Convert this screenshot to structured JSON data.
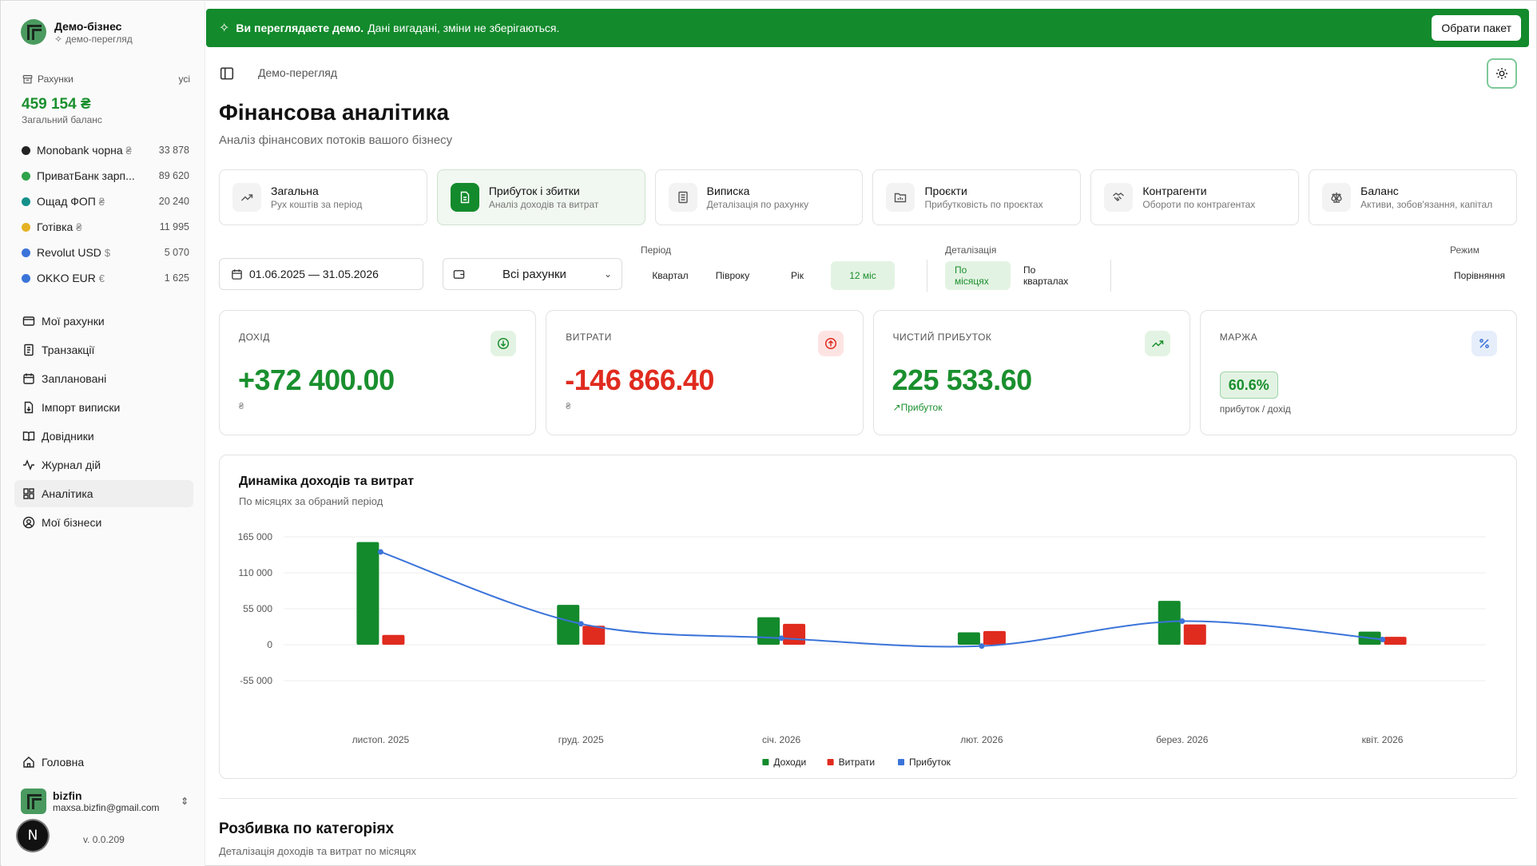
{
  "business": {
    "name": "Демо-бізнес",
    "subtitle": "демо-перегляд"
  },
  "accounts": {
    "header": "Рахунки",
    "all_link": "усі",
    "total": "459 154 ₴",
    "total_label": "Загальний баланс",
    "items": [
      {
        "name": "Monobank чорна",
        "currency": "₴",
        "amount": "33 878",
        "color": "#222222"
      },
      {
        "name": "ПриватБанк зарп...",
        "currency": "",
        "amount": "89 620",
        "color": "#2fa24a"
      },
      {
        "name": "Ощад ФОП",
        "currency": "₴",
        "amount": "20 240",
        "color": "#15918a"
      },
      {
        "name": "Готівка",
        "currency": "₴",
        "amount": "11 995",
        "color": "#e5b224"
      },
      {
        "name": "Revolut USD",
        "currency": "$",
        "amount": "5 070",
        "color": "#3b74d9"
      },
      {
        "name": "OKKO EUR",
        "currency": "€",
        "amount": "1 625",
        "color": "#3b74d9"
      }
    ]
  },
  "nav": [
    {
      "label": "Мої рахунки",
      "icon": "wallet-icon"
    },
    {
      "label": "Транзакції",
      "icon": "receipt-icon"
    },
    {
      "label": "Заплановані",
      "icon": "calendar-icon"
    },
    {
      "label": "Імпорт виписки",
      "icon": "file-import-icon"
    },
    {
      "label": "Довідники",
      "icon": "book-icon"
    },
    {
      "label": "Журнал дій",
      "icon": "activity-icon"
    },
    {
      "label": "Аналітика",
      "icon": "dashboard-icon",
      "active": true
    },
    {
      "label": "Мої бізнеси",
      "icon": "user-circle-icon"
    }
  ],
  "home_label": "Головна",
  "user": {
    "name": "bizfin",
    "email": "maxsa.bizfin@gmail.com"
  },
  "avatar_letter": "N",
  "version": "v. 0.0.209",
  "banner": {
    "bold": "Ви переглядаєте демо.",
    "text": "Дані вигадані, зміни не зберігаються.",
    "button": "Обрати пакет"
  },
  "breadcrumb": "Демо-перегляд",
  "page": {
    "title": "Фінансова аналітика",
    "subtitle": "Аналіз фінансових потоків вашого бізнесу"
  },
  "tabs": [
    {
      "title": "Загальна",
      "sub": "Рух коштів за період",
      "icon": "trend-icon"
    },
    {
      "title": "Прибуток і збитки",
      "sub": "Аналіз доходів та витрат",
      "icon": "document-icon",
      "active": true
    },
    {
      "title": "Виписка",
      "sub": "Деталізація по рахунку",
      "icon": "list-icon"
    },
    {
      "title": "Проєкти",
      "sub": "Прибутковість по проєктах",
      "icon": "folder-chart-icon"
    },
    {
      "title": "Контрагенти",
      "sub": "Обороти по контрагентах",
      "icon": "handshake-icon"
    },
    {
      "title": "Баланс",
      "sub": "Активи, зобов'язання, капітал",
      "icon": "scale-icon"
    }
  ],
  "filters": {
    "date_range": "01.06.2025 — 31.05.2026",
    "accounts": "Всі рахунки",
    "period_label": "Період",
    "period_options": [
      "Квартал",
      "Півроку",
      "Рік",
      "12 міс"
    ],
    "period_selected": "12 міс",
    "detail_label": "Деталізація",
    "detail_options": [
      "По місяцях",
      "По кварталах"
    ],
    "detail_selected": "По місяцях",
    "mode_label": "Режим",
    "mode_option": "Порівняння"
  },
  "kpis": [
    {
      "label": "ДОХІД",
      "value": "+372 400.00",
      "sub": "₴",
      "color": "#1a8f2e",
      "icon": "arrow-down-circle-icon",
      "icon_bg": "#e3f3e3",
      "icon_color": "#1a8f2e"
    },
    {
      "label": "ВИТРАТИ",
      "value": "-146 866.40",
      "sub": "₴",
      "color": "#e02b1f",
      "icon": "arrow-up-circle-icon",
      "icon_bg": "#fde4e2",
      "icon_color": "#e02b1f"
    },
    {
      "label": "ЧИСТИЙ ПРИБУТОК",
      "value": "225 533.60",
      "note": "Прибуток",
      "color": "#1a8f2e",
      "icon": "trend-up-icon",
      "icon_bg": "#e3f3e3",
      "icon_color": "#1a8f2e"
    },
    {
      "label": "МАРЖА",
      "pill": "60.6%",
      "sub": "прибуток / дохід",
      "icon": "percent-icon",
      "icon_bg": "#e6eefb",
      "icon_color": "#3b74d9"
    }
  ],
  "chart_data": {
    "type": "bar",
    "title": "Динаміка доходів та витрат",
    "subtitle": "По місяцях за обраний період",
    "categories": [
      "листоп. 2025",
      "груд. 2025",
      "січ. 2026",
      "лют. 2026",
      "берез. 2026",
      "квіт. 2026"
    ],
    "series": [
      {
        "name": "Доходи",
        "kind": "bar",
        "color": "#138a2c",
        "values": [
          157000,
          61000,
          42000,
          19000,
          67000,
          20000
        ]
      },
      {
        "name": "Витрати",
        "kind": "bar",
        "color": "#e02b1f",
        "values": [
          15000,
          29000,
          32000,
          21000,
          31000,
          12000
        ]
      },
      {
        "name": "Прибуток",
        "kind": "line",
        "color": "#3b74d9",
        "values": [
          142000,
          32000,
          10000,
          -2000,
          36000,
          8000
        ]
      }
    ],
    "y_ticks": [
      165000,
      110000,
      55000,
      0,
      -55000
    ],
    "y_tick_labels": [
      "165 000",
      "110 000",
      "55 000",
      "0",
      "-55 000"
    ],
    "ylim": [
      -55000,
      165000
    ],
    "grid": true,
    "legend": "bottom-center"
  },
  "breakdown": {
    "title": "Розбивка по категоріях",
    "subtitle": "Деталізація доходів та витрат по місяцях"
  }
}
